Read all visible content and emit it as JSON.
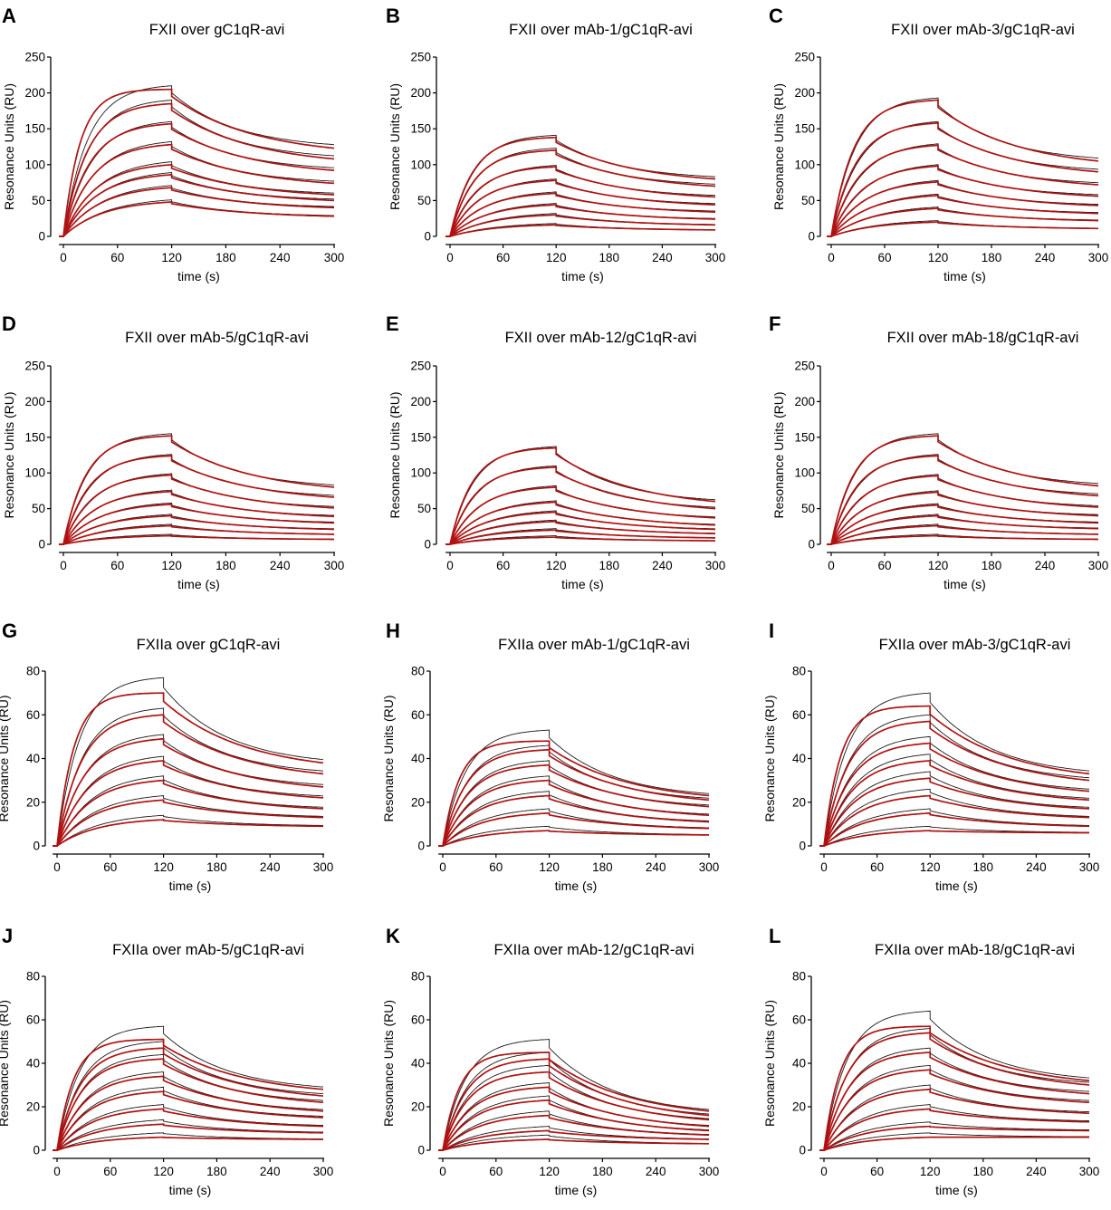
{
  "figure": {
    "colors": {
      "data_line": "#1a1a1a",
      "fit_line": "#b01212",
      "axis": "#000000"
    }
  },
  "chart_data": [
    {
      "type": "line",
      "letter": "A",
      "title": "FXII over gC1qR-avi",
      "xlabel": "time (s)",
      "ylabel": "Resonance Units  (RU)",
      "xlim": [
        -5,
        300
      ],
      "ylim": [
        0,
        250
      ],
      "xticks": [
        0,
        60,
        120,
        180,
        240,
        300
      ],
      "yticks": [
        0,
        50,
        100,
        150,
        200,
        250
      ],
      "association_end": 120,
      "fit_plateau": 210,
      "fit_final_levels": [
        205,
        185,
        157,
        128,
        100,
        86,
        68,
        48
      ],
      "data_final_levels": [
        210,
        190,
        160,
        132,
        104,
        89,
        71,
        51
      ],
      "dissociation_end_levels": [
        123,
        108,
        92,
        74,
        58,
        50,
        40,
        28
      ]
    },
    {
      "type": "line",
      "letter": "B",
      "title": "FXII over mAb-1/gC1qR-avi",
      "xlabel": "time (s)",
      "ylabel": "Resonance Units  (RU)",
      "xlim": [
        -5,
        300
      ],
      "ylim": [
        0,
        250
      ],
      "xticks": [
        0,
        60,
        120,
        180,
        240,
        300
      ],
      "yticks": [
        0,
        50,
        100,
        150,
        200,
        250
      ],
      "association_end": 120,
      "fit_plateau": null,
      "fit_final_levels": [
        138,
        120,
        97,
        78,
        60,
        44,
        30,
        16
      ],
      "data_final_levels": [
        141,
        123,
        99,
        80,
        62,
        46,
        32,
        18
      ],
      "dissociation_end_levels": [
        80,
        70,
        55,
        44,
        34,
        24,
        16,
        9
      ]
    },
    {
      "type": "line",
      "letter": "C",
      "title": "FXII over mAb-3/gC1qR-avi",
      "xlabel": "time (s)",
      "ylabel": "Resonance Units  (RU)",
      "xlim": [
        -5,
        300
      ],
      "ylim": [
        0,
        250
      ],
      "xticks": [
        0,
        60,
        120,
        180,
        240,
        300
      ],
      "yticks": [
        0,
        50,
        100,
        150,
        200,
        250
      ],
      "association_end": 120,
      "fit_plateau": null,
      "fit_final_levels": [
        190,
        158,
        127,
        98,
        76,
        57,
        39,
        20
      ],
      "data_final_levels": [
        193,
        160,
        129,
        100,
        78,
        59,
        41,
        22
      ],
      "dissociation_end_levels": [
        105,
        90,
        72,
        56,
        43,
        32,
        22,
        11
      ]
    },
    {
      "type": "line",
      "letter": "D",
      "title": "FXII over mAb-5/gC1qR-avi",
      "xlabel": "time (s)",
      "ylabel": "Resonance Units  (RU)",
      "xlim": [
        -5,
        300
      ],
      "ylim": [
        0,
        250
      ],
      "xticks": [
        0,
        60,
        120,
        180,
        240,
        300
      ],
      "yticks": [
        0,
        50,
        100,
        150,
        200,
        250
      ],
      "association_end": 120,
      "fit_plateau": null,
      "fit_final_levels": [
        152,
        124,
        97,
        74,
        56,
        40,
        26,
        12
      ],
      "data_final_levels": [
        155,
        126,
        99,
        76,
        58,
        42,
        28,
        14
      ],
      "dissociation_end_levels": [
        80,
        66,
        51,
        39,
        30,
        21,
        14,
        7
      ]
    },
    {
      "type": "line",
      "letter": "E",
      "title": "FXII over mAb-12/gC1qR-avi",
      "xlabel": "time (s)",
      "ylabel": "Resonance Units  (RU)",
      "xlim": [
        -5,
        300
      ],
      "ylim": [
        0,
        250
      ],
      "xticks": [
        0,
        60,
        120,
        180,
        240,
        300
      ],
      "yticks": [
        0,
        50,
        100,
        150,
        200,
        250
      ],
      "association_end": 120,
      "fit_plateau": null,
      "fit_final_levels": [
        135,
        108,
        80,
        59,
        45,
        32,
        20,
        10
      ],
      "data_final_levels": [
        137,
        110,
        82,
        61,
        47,
        34,
        22,
        12
      ],
      "dissociation_end_levels": [
        60,
        50,
        37,
        27,
        21,
        15,
        9,
        5
      ]
    },
    {
      "type": "line",
      "letter": "F",
      "title": "FXII over mAb-18/gC1qR-avi",
      "xlabel": "time (s)",
      "ylabel": "Resonance Units  (RU)",
      "xlim": [
        -5,
        300
      ],
      "ylim": [
        0,
        250
      ],
      "xticks": [
        0,
        60,
        120,
        180,
        240,
        300
      ],
      "yticks": [
        0,
        50,
        100,
        150,
        200,
        250
      ],
      "association_end": 120,
      "fit_plateau": null,
      "fit_final_levels": [
        152,
        124,
        96,
        73,
        55,
        40,
        26,
        12
      ],
      "data_final_levels": [
        155,
        126,
        98,
        75,
        57,
        42,
        28,
        14
      ],
      "dissociation_end_levels": [
        82,
        68,
        52,
        40,
        30,
        22,
        14,
        7
      ]
    },
    {
      "type": "line",
      "letter": "G",
      "title": "FXIIa over gC1qR-avi",
      "xlabel": "time (s)",
      "ylabel": "Resonance Units  (RU)",
      "xlim": [
        -5,
        300
      ],
      "ylim": [
        0,
        80
      ],
      "xticks": [
        0,
        60,
        120,
        180,
        240,
        300
      ],
      "yticks": [
        0,
        20,
        40,
        60,
        80
      ],
      "association_end": 120,
      "fit_plateau": 70,
      "fit_final_levels": [
        70,
        60,
        49,
        39,
        30,
        21,
        12
      ],
      "data_final_levels": [
        77,
        63,
        51,
        41,
        32,
        23,
        14
      ],
      "dissociation_end_levels": [
        38,
        33,
        27,
        22,
        17,
        13,
        9
      ]
    },
    {
      "type": "line",
      "letter": "H",
      "title": "FXIIa over mAb-1/gC1qR-avi",
      "xlabel": "time (s)",
      "ylabel": "Resonance Units  (RU)",
      "xlim": [
        -5,
        300
      ],
      "ylim": [
        0,
        80
      ],
      "xticks": [
        0,
        60,
        120,
        180,
        240,
        300
      ],
      "yticks": [
        0,
        20,
        40,
        60,
        80
      ],
      "association_end": 120,
      "fit_plateau": 48,
      "fit_final_levels": [
        48,
        44,
        37,
        30,
        23,
        15,
        7
      ],
      "data_final_levels": [
        53,
        46,
        39,
        32,
        25,
        17,
        9
      ],
      "dissociation_end_levels": [
        23,
        21,
        18,
        14,
        11,
        8,
        5
      ]
    },
    {
      "type": "line",
      "letter": "I",
      "title": "FXIIa over mAb-3/gC1qR-avi",
      "xlabel": "time (s)",
      "ylabel": "Resonance Units  (RU)",
      "xlim": [
        -5,
        300
      ],
      "ylim": [
        0,
        80
      ],
      "xticks": [
        0,
        60,
        120,
        180,
        240,
        300
      ],
      "yticks": [
        0,
        20,
        40,
        60,
        80
      ],
      "association_end": 120,
      "fit_plateau": 64,
      "fit_final_levels": [
        64,
        57,
        47,
        39,
        31,
        23,
        15,
        7
      ],
      "data_final_levels": [
        70,
        60,
        50,
        42,
        34,
        26,
        17,
        9
      ],
      "dissociation_end_levels": [
        33,
        30,
        25,
        21,
        17,
        13,
        9,
        6
      ]
    },
    {
      "type": "line",
      "letter": "J",
      "title": "FXIIa over mAb-5/gC1qR-avi",
      "xlabel": "time (s)",
      "ylabel": "Resonance Units  (RU)",
      "xlim": [
        -5,
        300
      ],
      "ylim": [
        0,
        80
      ],
      "xticks": [
        0,
        60,
        120,
        180,
        240,
        300
      ],
      "yticks": [
        0,
        20,
        40,
        60,
        80
      ],
      "association_end": 120,
      "fit_plateau": 51,
      "fit_final_levels": [
        51,
        47,
        42,
        34,
        27,
        19,
        12,
        6
      ],
      "data_final_levels": [
        57,
        50,
        44,
        36,
        29,
        21,
        14,
        8
      ],
      "dissociation_end_levels": [
        28,
        25,
        22,
        18,
        15,
        11,
        8,
        5
      ]
    },
    {
      "type": "line",
      "letter": "K",
      "title": "FXIIa over mAb-12/gC1qR-avi",
      "xlabel": "time (s)",
      "ylabel": "Resonance Units  (RU)",
      "xlim": [
        -5,
        300
      ],
      "ylim": [
        0,
        80
      ],
      "xticks": [
        0,
        60,
        120,
        180,
        240,
        300
      ],
      "yticks": [
        0,
        20,
        40,
        60,
        80
      ],
      "association_end": 120,
      "fit_plateau": 45,
      "fit_final_levels": [
        45,
        42,
        36,
        29,
        23,
        16,
        9,
        5
      ],
      "data_final_levels": [
        51,
        45,
        39,
        31,
        25,
        18,
        11,
        7
      ],
      "dissociation_end_levels": [
        18,
        16,
        14,
        11,
        9,
        7,
        5,
        3
      ]
    },
    {
      "type": "line",
      "letter": "L",
      "title": "FXIIa over mAb-18/gC1qR-avi",
      "xlabel": "time (s)",
      "ylabel": "Resonance Units  (RU)",
      "xlim": [
        -5,
        300
      ],
      "ylim": [
        0,
        80
      ],
      "xticks": [
        0,
        60,
        120,
        180,
        240,
        300
      ],
      "yticks": [
        0,
        20,
        40,
        60,
        80
      ],
      "association_end": 120,
      "fit_plateau": 57,
      "fit_final_levels": [
        57,
        54,
        45,
        37,
        28,
        19,
        11,
        6
      ],
      "data_final_levels": [
        64,
        56,
        47,
        39,
        30,
        21,
        13,
        8
      ],
      "dissociation_end_levels": [
        32,
        30,
        26,
        22,
        17,
        13,
        9,
        6
      ]
    }
  ]
}
